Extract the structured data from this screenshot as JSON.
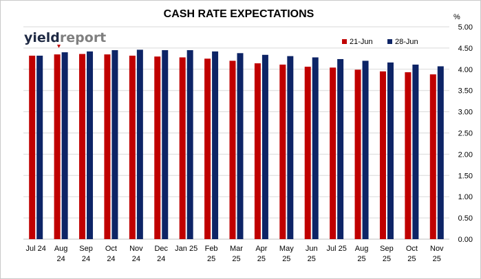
{
  "chart_data": {
    "type": "bar",
    "title": "CASH RATE EXPECTATIONS",
    "y_unit": "%",
    "ylim": [
      0,
      5
    ],
    "y_ticks": [
      "0.00",
      "0.50",
      "1.00",
      "1.50",
      "2.00",
      "2.50",
      "3.00",
      "3.50",
      "4.00",
      "4.50",
      "5.00"
    ],
    "y_axis_side": "right",
    "grid": true,
    "legend_position": "top-right",
    "categories": [
      [
        "Jul 24"
      ],
      [
        "Aug",
        "24"
      ],
      [
        "Sep",
        "24"
      ],
      [
        "Oct",
        "24"
      ],
      [
        "Nov",
        "24"
      ],
      [
        "Dec",
        "24"
      ],
      [
        "Jan 25"
      ],
      [
        "Feb",
        "25"
      ],
      [
        "Mar",
        "25"
      ],
      [
        "Apr",
        "25"
      ],
      [
        "May",
        "25"
      ],
      [
        "Jun",
        "25"
      ],
      [
        "Jul 25"
      ],
      [
        "Aug",
        "25"
      ],
      [
        "Sep",
        "25"
      ],
      [
        "Oct",
        "25"
      ],
      [
        "Nov",
        "25"
      ]
    ],
    "series": [
      {
        "name": "21-Jun",
        "color": "#c00000",
        "values": [
          4.32,
          4.35,
          4.36,
          4.35,
          4.32,
          4.3,
          4.28,
          4.25,
          4.2,
          4.14,
          4.11,
          4.06,
          4.04,
          3.99,
          3.95,
          3.93,
          3.88
        ]
      },
      {
        "name": "28-Jun",
        "color": "#0d2466",
        "values": [
          4.32,
          4.4,
          4.42,
          4.45,
          4.46,
          4.45,
          4.45,
          4.42,
          4.38,
          4.34,
          4.31,
          4.28,
          4.24,
          4.2,
          4.16,
          4.11,
          4.07
        ]
      }
    ]
  },
  "logo": {
    "part1": "yield",
    "part2": "report",
    "colors": {
      "dark": "#1f2a44",
      "light": "#7f7f7f",
      "accent": "#c00000"
    }
  }
}
